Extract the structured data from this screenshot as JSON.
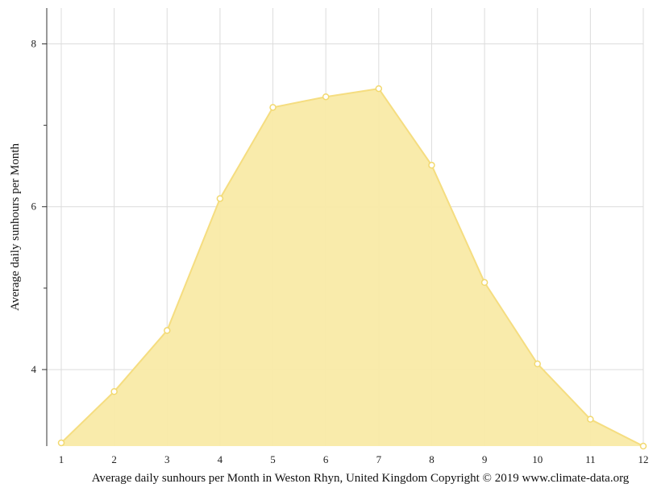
{
  "chart_data": {
    "type": "area",
    "x": [
      1,
      2,
      3,
      4,
      5,
      6,
      7,
      8,
      9,
      10,
      11,
      12
    ],
    "values": [
      3.1,
      3.73,
      4.48,
      6.1,
      7.22,
      7.35,
      7.45,
      6.51,
      5.07,
      4.07,
      3.39,
      3.06
    ],
    "ylabel": "Average daily sunhours per Month",
    "xlim": [
      1,
      12
    ],
    "ylim": [
      3.06,
      8.44
    ],
    "y_major_ticks": [
      4,
      6,
      8
    ],
    "y_minor_ticks": [
      5,
      7
    ],
    "grid": true,
    "fill_color": "#f9eaa6",
    "line_color": "#f5dd80",
    "marker_color": "#f2d970"
  },
  "caption": "Average daily sunhours per Month in Weston Rhyn, United Kingdom Copyright © 2019 www.climate-data.org"
}
